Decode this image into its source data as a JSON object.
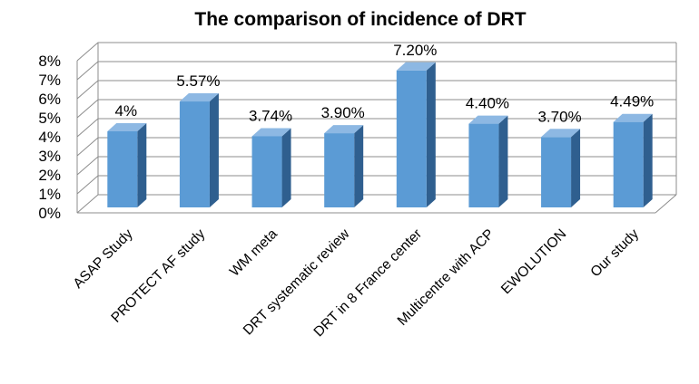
{
  "chart_data": {
    "type": "bar",
    "title": "The comparison of incidence of DRT",
    "categories": [
      "ASAP Study",
      "PROTECT AF study",
      "WM meta",
      "DRT systematic review",
      "DRT in 8 France center",
      "Multicentre with ACP",
      "EWOLUTION",
      "Our study"
    ],
    "values": [
      4.0,
      5.57,
      3.74,
      3.9,
      7.2,
      4.4,
      3.7,
      4.49
    ],
    "data_labels": [
      "4%",
      "5.57%",
      "3.74%",
      "3.90%",
      "7.20%",
      "4.40%",
      "3.70%",
      "4.49%"
    ],
    "y_ticks": [
      "0%",
      "1%",
      "2%",
      "3%",
      "4%",
      "5%",
      "6%",
      "7%",
      "8%"
    ],
    "ylim": [
      0,
      8
    ],
    "xlabel": "",
    "ylabel": "",
    "grid": true,
    "style": "3d-column",
    "colors": {
      "front": "#5b9bd5",
      "side": "#2f5f8f",
      "top": "#8db8e3"
    }
  }
}
